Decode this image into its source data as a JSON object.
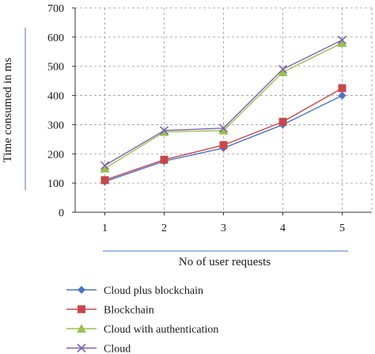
{
  "chart_data": {
    "type": "line",
    "title": "",
    "xlabel": "No of user requests",
    "ylabel": "Time consumed in ms",
    "x": [
      1,
      2,
      3,
      4,
      5
    ],
    "ylim": [
      0,
      700
    ],
    "yticks": [
      0,
      100,
      200,
      300,
      400,
      500,
      600,
      700
    ],
    "grid": "dashed-horizontal-and-vertical",
    "legend_position": "bottom",
    "series": [
      {
        "name": "Cloud plus blockchain",
        "values": [
          105,
          175,
          220,
          300,
          400
        ],
        "color": "#4a74c9",
        "marker": "diamond"
      },
      {
        "name": "Blockchain",
        "values": [
          110,
          180,
          230,
          310,
          425
        ],
        "color": "#c8474a",
        "marker": "square"
      },
      {
        "name": "Cloud with authentication",
        "values": [
          150,
          275,
          280,
          480,
          580
        ],
        "color": "#98c24f",
        "marker": "triangle"
      },
      {
        "name": "Cloud",
        "values": [
          160,
          280,
          288,
          490,
          590
        ],
        "color": "#7e63b0",
        "marker": "x"
      }
    ]
  }
}
